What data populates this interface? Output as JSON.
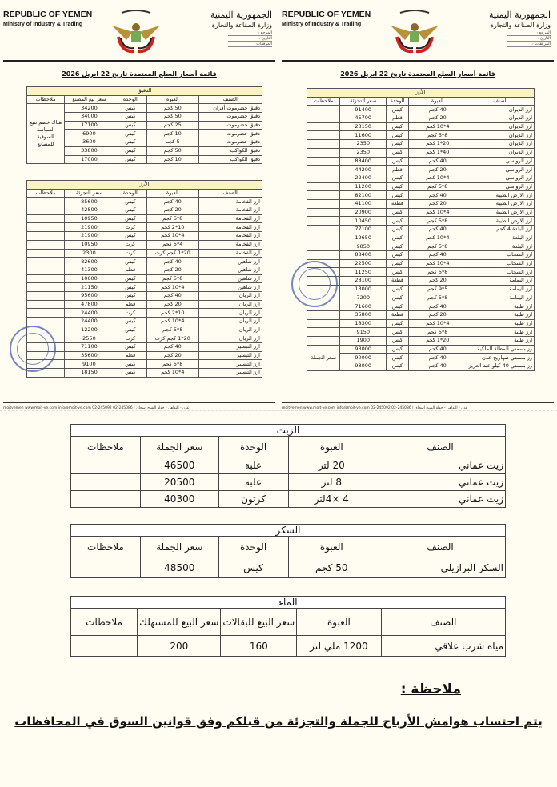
{
  "header": {
    "en_title": "REPUBLIC OF YEMEN",
    "en_sub": "Ministry of Industry & Trading",
    "ar_title": "الجمهورية اليمنية",
    "ar_sub": "وزارة الصناعة والتجارة",
    "ar_fields": [
      "المرجع :",
      "التاريخ :",
      "المرفقات :"
    ],
    "doc_title": "قائمة أسعار السلع المعتمدة تاريخ 22 ابريل 2026"
  },
  "footer": {
    "text": "moityemen  www.moit-ye.com  info@moit-ye.com  02-245092  02-245086 | عدن - التواهي - جولة الشيخ اسحاق"
  },
  "right_rice": {
    "caption": "الأرز",
    "headers": [
      "الصنف",
      "العبوة",
      "الوحدة",
      "سعر التجزئة",
      "ملاحظات"
    ],
    "merged_note": "سعر الجملة",
    "rows": [
      [
        "ارز الديوان",
        "40 كجم",
        "كيس",
        "91400"
      ],
      [
        "ارز الديوان",
        "20 كجم",
        "قطم",
        "45700"
      ],
      [
        "ارز الديوان",
        "4*10 كجم",
        "كيس",
        "23150"
      ],
      [
        "ارز الديوان",
        "8*5 كجم",
        "كيس",
        "11600"
      ],
      [
        "ارز الديوان",
        "20*1 كجم",
        "كيس",
        "2350"
      ],
      [
        "ارز الديوان",
        "40*1 كجم",
        "كيس",
        "2350"
      ],
      [
        "ارز الرواسي",
        "40 كجم",
        "كيس",
        "88400"
      ],
      [
        "ارز الرواسي",
        "20 كجم",
        "قطم",
        "44200"
      ],
      [
        "ارز الرواسي",
        "4*10 كجم",
        "كيس",
        "22400"
      ],
      [
        "ارز الرواسي",
        "8*5 كجم",
        "كيس",
        "11200"
      ],
      [
        "ارز الارض الطيبة",
        "40 كجم",
        "كيس",
        "82100"
      ],
      [
        "ارز الارض الطيبة",
        "20 كجم",
        "قطعة",
        "41100"
      ],
      [
        "ارز الارض الطيبة",
        "4*10 كجم",
        "كيس",
        "20900"
      ],
      [
        "ارز الارض الطيبة",
        "8*5 كجم",
        "كيس",
        "10450"
      ],
      [
        "ارز البلدة 4 كجم",
        "40 كجم",
        "كيس",
        "77100"
      ],
      [
        "ارز البلدة",
        "4*10 كجم",
        "كيس",
        "19650"
      ],
      [
        "ارز البلدة",
        "8*5 كجم",
        "كيس",
        "9850"
      ],
      [
        "ارز السحاب",
        "40 كجم",
        "كيس",
        "88400"
      ],
      [
        "ارز السحاب",
        "4*10 كجم",
        "كيس",
        "22500"
      ],
      [
        "ارز السحاب",
        "8*5 كجم",
        "كيس",
        "11250"
      ],
      [
        "ارز اليمامة",
        "20 كجم",
        "قطعة",
        "28100"
      ],
      [
        "ارز اليمامة",
        "5*9 كجم",
        "كيس",
        "13000"
      ],
      [
        "ارز اليمامة",
        "8*5 كجم",
        "كيس",
        "7200"
      ],
      [
        "ارز طيبة",
        "40 كجم",
        "كيس",
        "71600"
      ],
      [
        "ارز طيبة",
        "20 كجم",
        "قطعة",
        "35800"
      ],
      [
        "ارز طيبة",
        "4*10 كجم",
        "كيس",
        "18300"
      ],
      [
        "ارز طيبة",
        "8*5 كجم",
        "كيس",
        "9150"
      ],
      [
        "ارز طيبة",
        "20*1 كجم",
        "كيس",
        "1900"
      ],
      [
        "رز بسمتي المظلة الملكية",
        "40 كجم",
        "كيس",
        "93000"
      ],
      [
        "رز بسمتي صهاريج عدن",
        "40 كجم",
        "كيس",
        "90000"
      ],
      [
        "رز بسمتي 40 كيلو عبد العزيز",
        "40 كجم",
        "كيس",
        "98000"
      ]
    ]
  },
  "flour": {
    "caption": "الدقيق",
    "headers": [
      "الصنف",
      "العبوة",
      "الوحدة",
      "سعر بيع المصنع",
      "ملاحظات"
    ],
    "merged_note": "هناك خصم تتبع السياسة السوقية للمصانع",
    "rows": [
      [
        "دقيق حضرموت أفران",
        "50 كجم",
        "كيس",
        "34200"
      ],
      [
        "دقيق حضرموت",
        "50 كجم",
        "كيس",
        "34000"
      ],
      [
        "دقيق حضرموت",
        "25 كجم",
        "كيس",
        "17100"
      ],
      [
        "دقيق حضرموت",
        "10 كجم",
        "كيس",
        "6900"
      ],
      [
        "دقيق حضرموت",
        "5 كجم",
        "كيس",
        "3600"
      ],
      [
        "دقيق الكواكب",
        "50 كجم",
        "كيس",
        "33800"
      ],
      [
        "دقيق الكواكب",
        "10 كجم",
        "كيس",
        "17000"
      ]
    ]
  },
  "left_rice": {
    "caption": "الأرز",
    "headers": [
      "الصنف",
      "العبوة",
      "الوحدة",
      "سعر التجزئة",
      "ملاحظات"
    ],
    "rows": [
      [
        "ارز الفخامة",
        "40 كجم",
        "كيس",
        "85600"
      ],
      [
        "ارز الفخامة",
        "20 كجم",
        "كيس",
        "42800"
      ],
      [
        "ارز الفخامة",
        "8*5 كجم",
        "كيس",
        "10950"
      ],
      [
        "ارز الفخامة",
        "10*2 كجم",
        "كرت",
        "21900"
      ],
      [
        "ارز الفخامة",
        "4*10 كجم",
        "كيس",
        "21900"
      ],
      [
        "ارز الفخامة",
        "4*5 كجم",
        "كرت",
        "10950"
      ],
      [
        "ارز الفخامة",
        "20*1 كجم كرت",
        "كرت",
        "2300"
      ],
      [
        "ارز شاهين",
        "40 كجم",
        "كيس",
        "82600"
      ],
      [
        "ارز شاهين",
        "20 كجم",
        "قطم",
        "41300"
      ],
      [
        "ارز شاهين",
        "8*5 كجم",
        "كيس",
        "10600"
      ],
      [
        "ارز شاهين",
        "4*10 كجم",
        "كيس",
        "21150"
      ],
      [
        "ارز الريان",
        "40 كجم",
        "كيس",
        "95600"
      ],
      [
        "ارز الريان",
        "20 كجم",
        "قطم",
        "47800"
      ],
      [
        "ارز الريان",
        "10*2 كجم",
        "كرت",
        "24400"
      ],
      [
        "ارز الريان",
        "4*10 كجم",
        "كيس",
        "24400"
      ],
      [
        "ارز الريان",
        "8*5 كجم",
        "كيس",
        "12200"
      ],
      [
        "ارز الريان",
        "20*1 كجم كرت",
        "كرت",
        "2550"
      ],
      [
        "ارز التيسير",
        "40 كجم",
        "كيس",
        "71100"
      ],
      [
        "ارز التيسير",
        "20 كجم",
        "قطم",
        "35600"
      ],
      [
        "ارز التيسير",
        "8*5 كجم",
        "كيس",
        "9100"
      ],
      [
        "ارز التيسير",
        "4*10 كجم",
        "كيس",
        "18150"
      ]
    ]
  },
  "oil": {
    "caption": "الزيت",
    "headers": [
      "الصنف",
      "العبوة",
      "الوحدة",
      "سعر الجملة",
      "ملاحظات"
    ],
    "rows": [
      [
        "زيت عماني",
        "20 لتر",
        "علبة",
        "46500"
      ],
      [
        "زيت عماني",
        "8 لتر",
        "علبة",
        "20500"
      ],
      [
        "زيت عماني",
        "4 ×4لتر",
        "كرتون",
        "40300"
      ]
    ]
  },
  "sugar": {
    "caption": "السكر",
    "headers": [
      "الصنف",
      "العبوة",
      "الوحدة",
      "سعر الجملة",
      "ملاحظات"
    ],
    "rows": [
      [
        "السكر البرازيلي",
        "50 كجم",
        "كيس",
        "48500"
      ]
    ]
  },
  "water": {
    "caption": "الماء",
    "headers": [
      "الصنف",
      "العبوة",
      "سعر البيع للبقالات",
      "سعر البيع للمستهلك",
      "ملاحظات"
    ],
    "rows": [
      [
        "مياه شرب علاقي",
        "1200 ملي لتر",
        "160",
        "200"
      ]
    ]
  },
  "note": {
    "heading": "ملاحظة :",
    "text": "يتم احتساب هوامش الأرباح للجملة والتجزئة من قبلكم وفق قوانين السوق في المحافظات"
  },
  "stamp_text": "Ministry of Industry & Trade - Republic of Yemen"
}
